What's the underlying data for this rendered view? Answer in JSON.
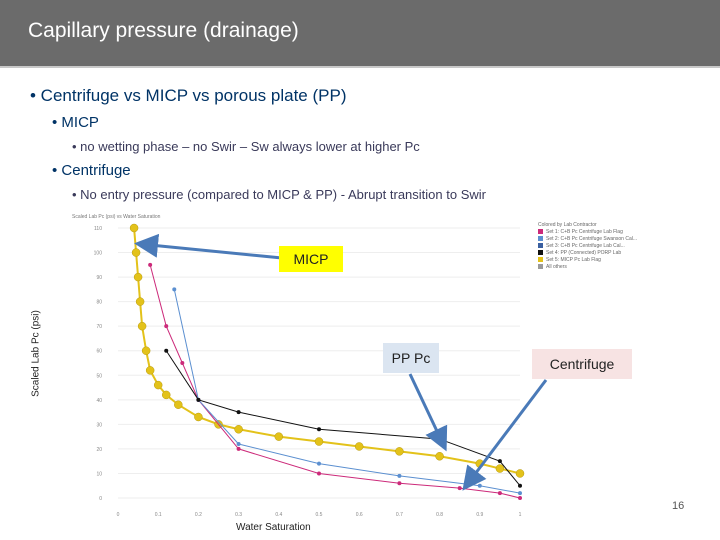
{
  "slide": {
    "title": "Capillary pressure (drainage)",
    "bullets": [
      "• Centrifuge vs MICP vs porous plate (PP)",
      "• MICP",
      "• no wetting phase – no Swir – Sw always lower at higher Pc",
      "• Centrifuge",
      "• No entry pressure (compared to MICP & PP) - Abrupt transition to Swir"
    ],
    "page_number": "16"
  },
  "callouts": {
    "micp": "MICP",
    "pp": "PP Pc",
    "centrifuge": "Centrifuge"
  },
  "chart_data": {
    "type": "scatter",
    "title": "Scaled Lab Pc (psi) vs Water Saturation",
    "xlabel": "Water Saturation",
    "ylabel": "Scaled Lab Pc (psi)",
    "xlim": [
      0,
      1
    ],
    "ylim": [
      0,
      110
    ],
    "x_ticks": [
      "0",
      "0.1",
      "0.2",
      "0.3",
      "0.4",
      "0.5",
      "0.6",
      "0.7",
      "0.8",
      "0.9",
      "1"
    ],
    "y_ticks": [
      "0",
      "10",
      "20",
      "30",
      "40",
      "50",
      "60",
      "70",
      "80",
      "90",
      "100",
      "110"
    ],
    "legend_title": "Colored by Lab Contractor",
    "legend": [
      {
        "name": "Set 1: C+B Pc Centrifuge Lab Flag",
        "color": "#cc2a7a"
      },
      {
        "name": "Set 2: C+B Pc Centrifuge Swanson Cal...",
        "color": "#5b8fd0"
      },
      {
        "name": "Set 3: C+B Pc Centrifuge Lab Cal...",
        "color": "#3a5fa0"
      },
      {
        "name": "Set 4: PP (Connected) PORP Lab",
        "color": "#111111"
      },
      {
        "name": "Set 5: MICP Pc Lab Flag",
        "color": "#e3c21a"
      },
      {
        "name": "All others",
        "color": "#9a9a9a"
      }
    ],
    "series": [
      {
        "name": "MICP",
        "color": "#e3c21a",
        "x": [
          0.04,
          0.045,
          0.05,
          0.055,
          0.06,
          0.07,
          0.08,
          0.1,
          0.12,
          0.15,
          0.2,
          0.25,
          0.3,
          0.4,
          0.5,
          0.6,
          0.7,
          0.8,
          0.9,
          0.95,
          1.0
        ],
        "y": [
          110,
          100,
          90,
          80,
          70,
          60,
          52,
          46,
          42,
          38,
          33,
          30,
          28,
          25,
          23,
          21,
          19,
          17,
          14,
          12,
          10
        ]
      },
      {
        "name": "Centrifuge (pink)",
        "color": "#cc2a7a",
        "x": [
          0.08,
          0.12,
          0.16,
          0.2,
          0.3,
          0.5,
          0.7,
          0.85,
          0.95,
          1.0
        ],
        "y": [
          95,
          70,
          55,
          40,
          20,
          10,
          6,
          4,
          2,
          0
        ]
      },
      {
        "name": "Centrifuge (blue)",
        "color": "#5b8fd0",
        "x": [
          0.14,
          0.2,
          0.3,
          0.5,
          0.7,
          0.9,
          1.0
        ],
        "y": [
          85,
          40,
          22,
          14,
          9,
          5,
          2
        ]
      },
      {
        "name": "PP",
        "color": "#111111",
        "x": [
          0.12,
          0.2,
          0.3,
          0.5,
          0.8,
          0.95,
          1.0
        ],
        "y": [
          60,
          40,
          35,
          28,
          24,
          15,
          5
        ]
      }
    ]
  }
}
